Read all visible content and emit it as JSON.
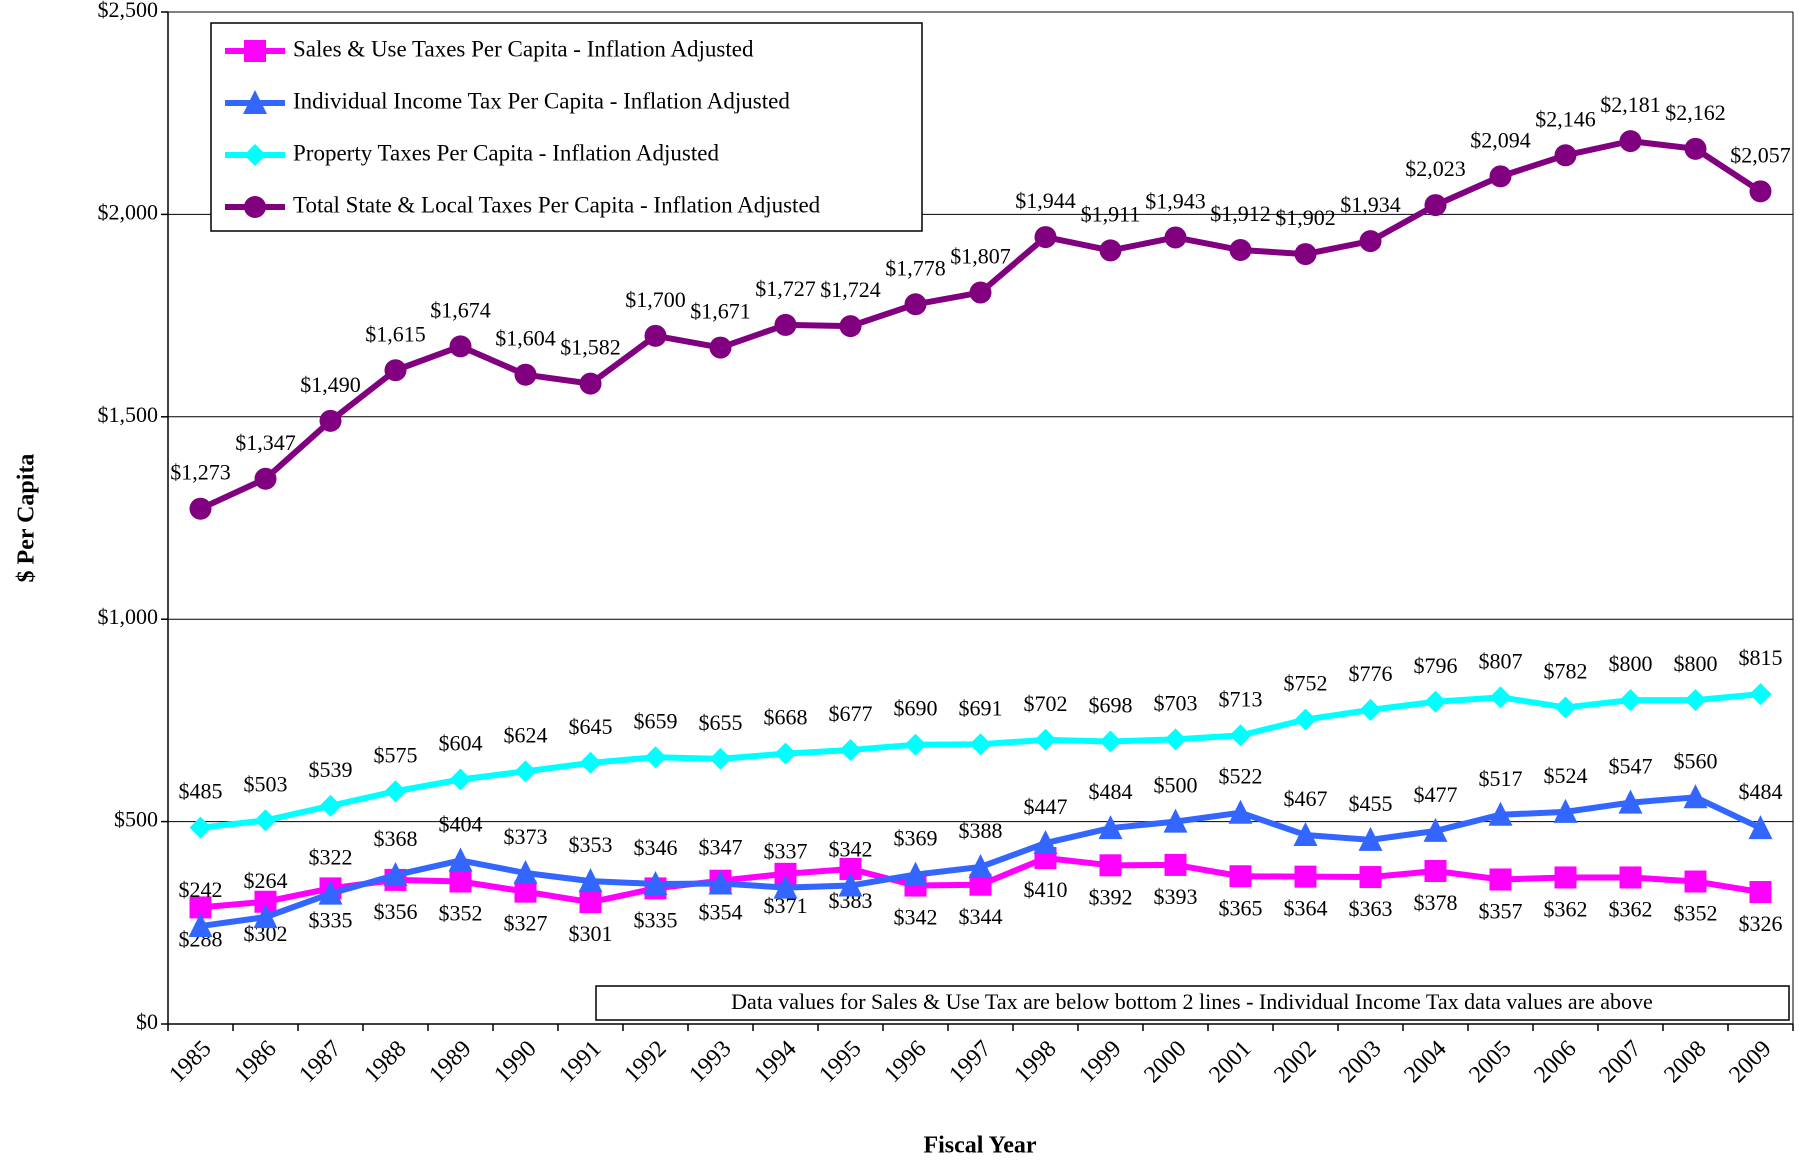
{
  "chart_data": {
    "type": "line",
    "x_label": "Fiscal Year",
    "y_label": "$ Per Capita",
    "note": "Data values for Sales & Use Tax are below bottom 2 lines - Individual Income Tax data values are above",
    "categories": [
      "1985",
      "1986",
      "1987",
      "1988",
      "1989",
      "1990",
      "1991",
      "1992",
      "1993",
      "1994",
      "1995",
      "1996",
      "1997",
      "1998",
      "1999",
      "2000",
      "2001",
      "2002",
      "2003",
      "2004",
      "2005",
      "2006",
      "2007",
      "2008",
      "2009"
    ],
    "ylim": [
      0,
      2500
    ],
    "yticks": [
      {
        "value": 0,
        "label": "$0"
      },
      {
        "value": 500,
        "label": "$500"
      },
      {
        "value": 1000,
        "label": "$1,000"
      },
      {
        "value": 1500,
        "label": "$1,500"
      },
      {
        "value": 2000,
        "label": "$2,000"
      },
      {
        "value": 2500,
        "label": "$2,500"
      }
    ],
    "grid": true,
    "legend": "top-left",
    "series": [
      {
        "name": "Sales & Use Taxes Per Capita - Inflation Adjusted",
        "color": "#ff00ff",
        "marker": "square",
        "label_position": "below",
        "values": [
          288,
          302,
          335,
          356,
          352,
          327,
          301,
          335,
          354,
          371,
          383,
          342,
          344,
          410,
          392,
          393,
          365,
          364,
          363,
          378,
          357,
          362,
          362,
          352,
          326
        ],
        "value_labels": [
          "$288",
          "$302",
          "$335",
          "$356",
          "$352",
          "$327",
          "$301",
          "$335",
          "$354",
          "$371",
          "$383",
          "$342",
          "$344",
          "$410",
          "$392",
          "$393",
          "$365",
          "$364",
          "$363",
          "$378",
          "$357",
          "$362",
          "$362",
          "$352",
          "$326"
        ]
      },
      {
        "name": "Individual Income Tax Per Capita - Inflation Adjusted",
        "color": "#3366ff",
        "marker": "triangle",
        "label_position": "above",
        "values": [
          242,
          264,
          322,
          368,
          404,
          373,
          353,
          346,
          347,
          337,
          342,
          369,
          388,
          447,
          484,
          500,
          522,
          467,
          455,
          477,
          517,
          524,
          547,
          560,
          484
        ],
        "value_labels": [
          "$242",
          "$264",
          "$322",
          "$368",
          "$404",
          "$373",
          "$353",
          "$346",
          "$347",
          "$337",
          "$342",
          "$369",
          "$388",
          "$447",
          "$484",
          "$500",
          "$522",
          "$467",
          "$455",
          "$477",
          "$517",
          "$524",
          "$547",
          "$560",
          "$484"
        ]
      },
      {
        "name": "Property Taxes Per Capita - Inflation Adjusted",
        "color": "#00ffff",
        "marker": "diamond",
        "label_position": "above",
        "values": [
          485,
          503,
          539,
          575,
          604,
          624,
          645,
          659,
          655,
          668,
          677,
          690,
          691,
          702,
          698,
          703,
          713,
          752,
          776,
          796,
          807,
          782,
          800,
          800,
          815
        ],
        "value_labels": [
          "$485",
          "$503",
          "$539",
          "$575",
          "$604",
          "$624",
          "$645",
          "$659",
          "$655",
          "$668",
          "$677",
          "$690",
          "$691",
          "$702",
          "$698",
          "$703",
          "$713",
          "$752",
          "$776",
          "$796",
          "$807",
          "$782",
          "$800",
          "$800",
          "$815"
        ]
      },
      {
        "name": "Total State & Local Taxes Per Capita - Inflation Adjusted",
        "color": "#800080",
        "marker": "circle",
        "label_position": "above",
        "values": [
          1273,
          1347,
          1490,
          1615,
          1674,
          1604,
          1582,
          1700,
          1671,
          1727,
          1724,
          1778,
          1807,
          1944,
          1911,
          1943,
          1912,
          1902,
          1934,
          2023,
          2094,
          2146,
          2181,
          2162,
          2057
        ],
        "value_labels": [
          "$1,273",
          "$1,347",
          "$1,490",
          "$1,615",
          "$1,674",
          "$1,604",
          "$1,582",
          "$1,700",
          "$1,671",
          "$1,727",
          "$1,724",
          "$1,778",
          "$1,807",
          "$1,944",
          "$1,911",
          "$1,943",
          "$1,912",
          "$1,902",
          "$1,934",
          "$2,023",
          "$2,094",
          "$2,146",
          "$2,181",
          "$2,162",
          "$2,057"
        ]
      }
    ]
  }
}
